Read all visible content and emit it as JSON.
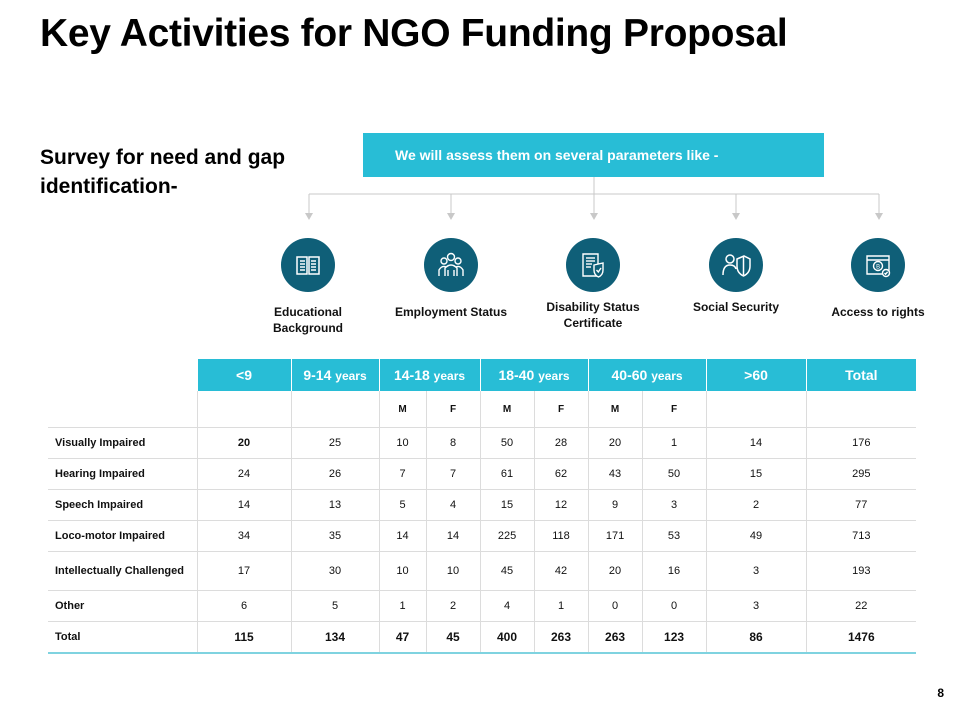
{
  "title": "Key Activities for NGO Funding Proposal",
  "subtitle": "Survey for need and gap identification-",
  "banner": "We will assess them on several parameters like -",
  "parameters": [
    {
      "label": "Educational Background",
      "icon": "book-icon"
    },
    {
      "label": "Employment Status",
      "icon": "people-group-icon"
    },
    {
      "label": "Disability Status Certificate",
      "icon": "certificate-shield-icon"
    },
    {
      "label": "Social Security",
      "icon": "person-shield-icon"
    },
    {
      "label": "Access to rights",
      "icon": "bitcoin-document-icon"
    }
  ],
  "table": {
    "headers": [
      {
        "main": "<9",
        "unit": ""
      },
      {
        "main": "9-14",
        "unit": "years"
      },
      {
        "main": "14-18",
        "unit": "years"
      },
      {
        "main": "18-40",
        "unit": "years"
      },
      {
        "main": "40-60",
        "unit": "years"
      },
      {
        "main": ">60",
        "unit": ""
      },
      {
        "main": "Total",
        "unit": ""
      }
    ],
    "gender_labels": [
      "M",
      "F",
      "M",
      "F",
      "M",
      "F"
    ],
    "rows": [
      {
        "label": "Visually Impaired",
        "values": [
          "20",
          "25",
          "10",
          "8",
          "50",
          "28",
          "20",
          "1",
          "14",
          "176"
        ]
      },
      {
        "label": "Hearing Impaired",
        "values": [
          "24",
          "26",
          "7",
          "7",
          "61",
          "62",
          "43",
          "50",
          "15",
          "295"
        ]
      },
      {
        "label": "Speech Impaired",
        "values": [
          "14",
          "13",
          "5",
          "4",
          "15",
          "12",
          "9",
          "3",
          "2",
          "77"
        ]
      },
      {
        "label": "Loco-motor Impaired",
        "values": [
          "34",
          "35",
          "14",
          "14",
          "225",
          "118",
          "171",
          "53",
          "49",
          "713"
        ]
      },
      {
        "label": "Intellectually Challenged",
        "values": [
          "17",
          "30",
          "10",
          "10",
          "45",
          "42",
          "20",
          "16",
          "3",
          "193"
        ]
      },
      {
        "label": "Other",
        "values": [
          "6",
          "5",
          "1",
          "2",
          "4",
          "1",
          "0",
          "0",
          "3",
          "22"
        ]
      }
    ],
    "total": {
      "label": "Total",
      "values": [
        "115",
        "134",
        "47",
        "45",
        "400",
        "263",
        "263",
        "123",
        "86",
        "1476"
      ]
    }
  },
  "page_number": "8",
  "colors": {
    "accent": "#28bdd6",
    "icon_bg": "#0f5f78"
  }
}
